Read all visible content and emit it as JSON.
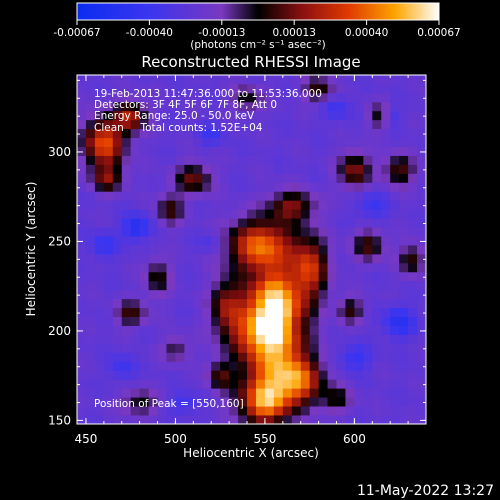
{
  "chart_data": {
    "type": "heatmap",
    "title": "Reconstructed RHESSI Image",
    "xlabel": "Heliocentric X (arcsec)",
    "ylabel": "Heliocentric Y (arcsec)",
    "xlim": [
      445,
      640
    ],
    "ylim": [
      148,
      343
    ],
    "x_ticks": [
      450,
      500,
      550,
      600
    ],
    "y_ticks": [
      150,
      200,
      250,
      300
    ],
    "colorbar": {
      "range": [
        -0.00067,
        0.00067
      ],
      "ticks": [
        "-0.00067",
        "-0.00040",
        "-0.00013",
        "0.00013",
        "0.00040",
        "0.00067"
      ],
      "units_label": "(photons cm⁻² s⁻¹ asec⁻²)"
    },
    "annotations": {
      "time": "19-Feb-2013 11:47:36.000 to 11:53:36.000",
      "detectors": "Detectors: 3F 4F 5F 6F 7F 8F, Att 0",
      "energy": "Energy Range: 25.0 - 50.0 keV",
      "clean": "Clean     Total counts: 1.52E+04",
      "peak": "Position of Peak = [550,160]"
    },
    "sources": [
      {
        "x": 548,
        "y": 248,
        "sx": 13,
        "sy": 10,
        "amp": 0.00064
      },
      {
        "x": 553,
        "y": 222,
        "sx": 11,
        "sy": 11,
        "amp": 0.0006
      },
      {
        "x": 545,
        "y": 200,
        "sx": 12,
        "sy": 10,
        "amp": 0.00052
      },
      {
        "x": 560,
        "y": 205,
        "sx": 10,
        "sy": 11,
        "amp": 0.00058
      },
      {
        "x": 555,
        "y": 180,
        "sx": 12,
        "sy": 12,
        "amp": 0.00055
      },
      {
        "x": 550,
        "y": 160,
        "sx": 10,
        "sy": 9,
        "amp": 0.00066
      },
      {
        "x": 570,
        "y": 172,
        "sx": 9,
        "sy": 9,
        "amp": 0.00048
      },
      {
        "x": 575,
        "y": 235,
        "sx": 7,
        "sy": 12,
        "amp": 0.0005
      },
      {
        "x": 565,
        "y": 270,
        "sx": 9,
        "sy": 6,
        "amp": 0.00038
      },
      {
        "x": 528,
        "y": 215,
        "sx": 6,
        "sy": 10,
        "amp": 0.00035
      },
      {
        "x": 460,
        "y": 305,
        "sx": 8,
        "sy": 10,
        "amp": 0.0006
      },
      {
        "x": 475,
        "y": 320,
        "sx": 6,
        "sy": 6,
        "amp": 0.00046
      },
      {
        "x": 462,
        "y": 285,
        "sx": 6,
        "sy": 5,
        "amp": 0.00033
      },
      {
        "x": 510,
        "y": 285,
        "sx": 7,
        "sy": 6,
        "amp": 0.00036
      },
      {
        "x": 497,
        "y": 268,
        "sx": 5,
        "sy": 6,
        "amp": 0.0003
      },
      {
        "x": 490,
        "y": 230,
        "sx": 5,
        "sy": 7,
        "amp": 0.00028
      },
      {
        "x": 475,
        "y": 210,
        "sx": 6,
        "sy": 5,
        "amp": 0.0003
      },
      {
        "x": 600,
        "y": 290,
        "sx": 6,
        "sy": 7,
        "amp": 0.0004
      },
      {
        "x": 625,
        "y": 290,
        "sx": 6,
        "sy": 6,
        "amp": 0.00034
      },
      {
        "x": 608,
        "y": 248,
        "sx": 6,
        "sy": 6,
        "amp": 0.00032
      },
      {
        "x": 632,
        "y": 240,
        "sx": 5,
        "sy": 6,
        "amp": 0.0003
      },
      {
        "x": 598,
        "y": 212,
        "sx": 5,
        "sy": 5,
        "amp": 0.00028
      },
      {
        "x": 590,
        "y": 162,
        "sx": 6,
        "sy": 5,
        "amp": 0.00025
      },
      {
        "x": 580,
        "y": 335,
        "sx": 6,
        "sy": 5,
        "amp": 0.0003
      },
      {
        "x": 540,
        "y": 330,
        "sx": 6,
        "sy": 5,
        "amp": 0.00025
      },
      {
        "x": 615,
        "y": 320,
        "sx": 5,
        "sy": 5,
        "amp": 0.00028
      },
      {
        "x": 480,
        "y": 160,
        "sx": 7,
        "sy": 5,
        "amp": 0.00026
      },
      {
        "x": 500,
        "y": 190,
        "sx": 5,
        "sy": 5,
        "amp": 0.00022
      },
      {
        "x": 525,
        "y": 175,
        "sx": 5,
        "sy": 6,
        "amp": 0.0003
      },
      {
        "x": 478,
        "y": 258,
        "sx": 5,
        "sy": 5,
        "amp": -0.0003
      },
      {
        "x": 460,
        "y": 248,
        "sx": 5,
        "sy": 5,
        "amp": -0.0002
      },
      {
        "x": 565,
        "y": 203,
        "sx": 6,
        "sy": 5,
        "amp": -0.00016
      },
      {
        "x": 545,
        "y": 230,
        "sx": 5,
        "sy": 5,
        "amp": -0.00012
      },
      {
        "x": 625,
        "y": 205,
        "sx": 6,
        "sy": 6,
        "amp": -0.00026
      },
      {
        "x": 620,
        "y": 320,
        "sx": 4,
        "sy": 4,
        "amp": -0.0002
      },
      {
        "x": 520,
        "y": 310,
        "sx": 5,
        "sy": 4,
        "amp": -0.00016
      },
      {
        "x": 600,
        "y": 185,
        "sx": 6,
        "sy": 5,
        "amp": -0.0002
      },
      {
        "x": 610,
        "y": 270,
        "sx": 6,
        "sy": 6,
        "amp": -0.00016
      },
      {
        "x": 505,
        "y": 160,
        "sx": 6,
        "sy": 4,
        "amp": -0.00016
      },
      {
        "x": 470,
        "y": 180,
        "sx": 5,
        "sy": 5,
        "amp": -0.00016
      },
      {
        "x": 520,
        "y": 250,
        "sx": 5,
        "sy": 5,
        "amp": -0.00012
      },
      {
        "x": 590,
        "y": 325,
        "sx": 5,
        "sy": 5,
        "amp": -0.00016
      }
    ],
    "grid_step": 5
  },
  "footer": {
    "timestamp": "11-May-2022 13:27"
  }
}
